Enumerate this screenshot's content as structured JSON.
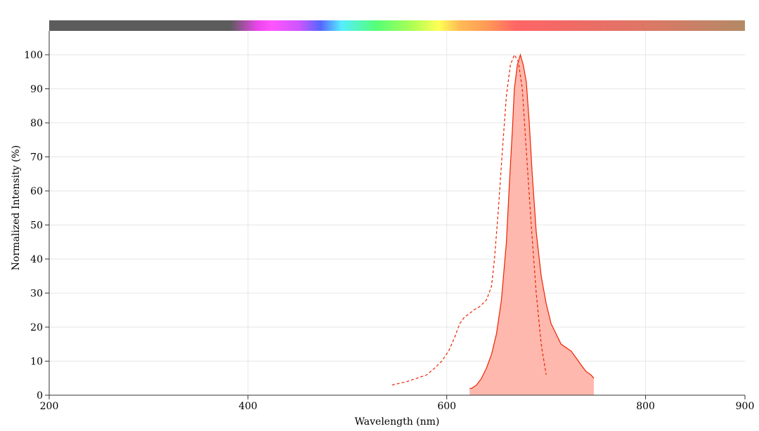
{
  "chart_data": {
    "type": "area",
    "title": "",
    "xlabel": "Wavelength (nm)",
    "ylabel": "Normalized Intensity (%)",
    "xlim": [
      200,
      900
    ],
    "ylim": [
      0,
      100
    ],
    "x_ticks": [
      200,
      400,
      600,
      800,
      900
    ],
    "y_ticks": [
      0,
      10,
      20,
      30,
      40,
      50,
      60,
      70,
      80,
      90,
      100
    ],
    "grid": true,
    "legend": "none",
    "spectrum_bar": true,
    "series": [
      {
        "style": "dashed",
        "color": "#ee2200",
        "x": [
          545,
          560,
          570,
          580,
          588,
          595,
          602,
          608,
          613,
          618,
          623,
          627,
          633,
          640,
          645,
          648,
          652,
          656,
          660,
          664,
          668,
          672,
          676,
          680,
          685,
          690,
          695,
          700
        ],
        "y": [
          3,
          4,
          5,
          6,
          8,
          10,
          13,
          17,
          21,
          23,
          24,
          25,
          26,
          28,
          32,
          40,
          55,
          72,
          88,
          97,
          100,
          98,
          90,
          72,
          50,
          30,
          15,
          6
        ]
      },
      {
        "style": "solid-filled",
        "color": "#ee2200",
        "fill": "#ffb8ad",
        "x": [
          623,
          625,
          630,
          635,
          640,
          645,
          650,
          655,
          660,
          663,
          666,
          668,
          671,
          674,
          677,
          680,
          683,
          686,
          690,
          695,
          700,
          705,
          710,
          715,
          720,
          725,
          730,
          735,
          740,
          745,
          748
        ],
        "y": [
          2,
          2,
          3,
          5,
          8,
          12,
          18,
          28,
          45,
          62,
          78,
          90,
          97,
          100,
          97,
          92,
          80,
          65,
          48,
          35,
          27,
          21,
          18,
          15,
          14,
          13,
          11,
          9,
          7,
          6,
          5
        ]
      }
    ]
  }
}
